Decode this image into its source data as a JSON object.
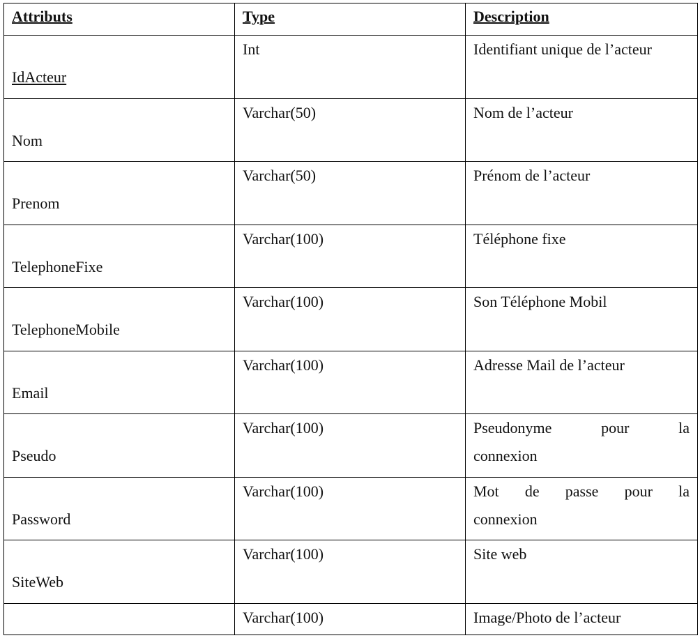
{
  "headers": [
    "Attributs",
    "Type",
    "Description"
  ],
  "rows": [
    {
      "attribute": "IdActeur",
      "key": true,
      "type": "Int",
      "description": [
        "Identifiant unique de l’acteur"
      ]
    },
    {
      "attribute": "Nom",
      "type": "Varchar(50)",
      "description": [
        "Nom de l’acteur"
      ]
    },
    {
      "attribute": "Prenom",
      "type": "Varchar(50)",
      "description": [
        "Prénom de l’acteur"
      ]
    },
    {
      "attribute": "TelephoneFixe",
      "type": "Varchar(100)",
      "description": [
        "Téléphone fixe"
      ]
    },
    {
      "attribute": "TelephoneMobile",
      "type": "Varchar(100)",
      "description": [
        "Son Téléphone Mobil"
      ]
    },
    {
      "attribute": "Email",
      "type": "Varchar(100)",
      "description": [
        "Adresse Mail de l’acteur"
      ]
    },
    {
      "attribute": "Pseudo",
      "type": "Varchar(100)",
      "description": [
        "Pseudonyme pour la",
        "connexion"
      ]
    },
    {
      "attribute": "Password",
      "type": "Varchar(100)",
      "description": [
        "Mot de passe pour la",
        "connexion"
      ]
    },
    {
      "attribute": "SiteWeb",
      "type": "Varchar(100)",
      "description": [
        "Site web"
      ]
    },
    {
      "attribute": "",
      "type": "Varchar(100)",
      "description": [
        "Image/Photo de l’acteur"
      ]
    }
  ]
}
